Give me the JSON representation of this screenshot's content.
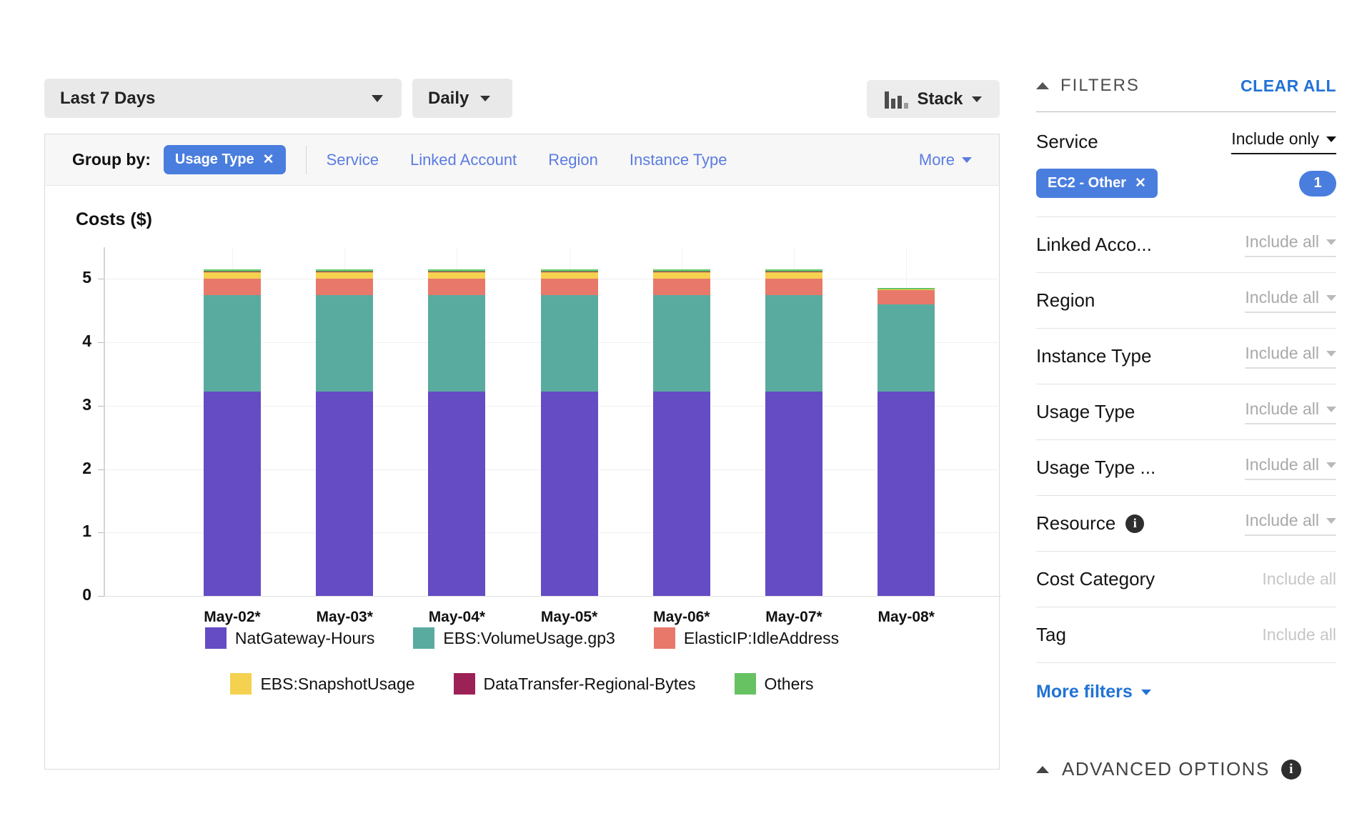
{
  "toolbar": {
    "date_range": "Last 7 Days",
    "granularity": "Daily",
    "chart_style": "Stack"
  },
  "group_by": {
    "label": "Group by:",
    "chip": "Usage Type",
    "links": [
      "Service",
      "Linked Account",
      "Region",
      "Instance Type"
    ],
    "more": "More"
  },
  "chart_data": {
    "type": "bar",
    "stacked": true,
    "title": "Costs ($)",
    "categories": [
      "May-02*",
      "May-03*",
      "May-04*",
      "May-05*",
      "May-06*",
      "May-07*",
      "May-08*"
    ],
    "series": [
      {
        "name": "NatGateway-Hours",
        "color": "#654bc4",
        "values": [
          3.22,
          3.22,
          3.22,
          3.22,
          3.22,
          3.22,
          3.22
        ]
      },
      {
        "name": "EBS:VolumeUsage.gp3",
        "color": "#5aab9f",
        "values": [
          1.53,
          1.53,
          1.53,
          1.53,
          1.53,
          1.53,
          1.38
        ]
      },
      {
        "name": "ElasticIP:IdleAddress",
        "color": "#e8796a",
        "values": [
          0.25,
          0.25,
          0.25,
          0.25,
          0.25,
          0.25,
          0.23
        ]
      },
      {
        "name": "EBS:SnapshotUsage",
        "color": "#f4d14f",
        "values": [
          0.11,
          0.11,
          0.11,
          0.11,
          0.11,
          0.11,
          0.01
        ]
      },
      {
        "name": "DataTransfer-Regional-Bytes",
        "color": "#9c2156",
        "values": [
          0.01,
          0.01,
          0.01,
          0.01,
          0.01,
          0.01,
          0.0
        ]
      },
      {
        "name": "Others",
        "color": "#67c262",
        "values": [
          0.03,
          0.03,
          0.03,
          0.03,
          0.03,
          0.03,
          0.02
        ]
      }
    ],
    "ylabel": "Costs ($)",
    "xlabel": "",
    "ylim": [
      0,
      5.5
    ],
    "yticks": [
      0,
      1,
      2,
      3,
      4,
      5
    ],
    "grid": true,
    "legend_position": "bottom"
  },
  "filters": {
    "title": "FILTERS",
    "clear_all": "CLEAR ALL",
    "service": {
      "label": "Service",
      "mode": "Include only",
      "chip": "EC2 - Other",
      "count": "1"
    },
    "rows": [
      {
        "label": "Linked Acco...",
        "value": "Include all",
        "caret": true,
        "info": false
      },
      {
        "label": "Region",
        "value": "Include all",
        "caret": true,
        "info": false
      },
      {
        "label": "Instance Type",
        "value": "Include all",
        "caret": true,
        "info": false
      },
      {
        "label": "Usage Type",
        "value": "Include all",
        "caret": true,
        "info": false
      },
      {
        "label": "Usage Type ...",
        "value": "Include all",
        "caret": true,
        "info": false
      },
      {
        "label": "Resource",
        "value": "Include all",
        "caret": true,
        "info": true
      },
      {
        "label": "Cost Category",
        "value": "Include all",
        "caret": false,
        "info": false
      },
      {
        "label": "Tag",
        "value": "Include all",
        "caret": false,
        "info": false
      }
    ],
    "more_filters": "More filters",
    "advanced": "ADVANCED OPTIONS"
  },
  "icons": {
    "close": "✕"
  },
  "colors": {
    "accent_blue": "#4a7ede",
    "link_blue": "#5b7ce0",
    "action_blue": "#2173d4",
    "button_gray": "#e9e9e9"
  }
}
